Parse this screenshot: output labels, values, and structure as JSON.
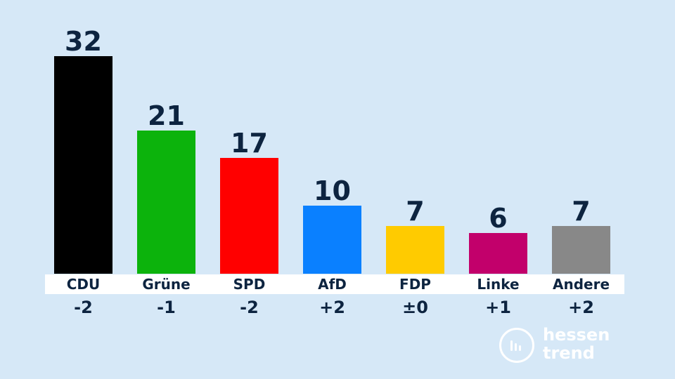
{
  "chart_data": {
    "type": "bar",
    "categories": [
      "CDU",
      "Grüne",
      "SPD",
      "AfD",
      "FDP",
      "Linke",
      "Andere"
    ],
    "values": [
      32,
      21,
      17,
      10,
      7,
      6,
      7
    ],
    "changes": [
      "-2",
      "-1",
      "-2",
      "+2",
      "±0",
      "+1",
      "+2"
    ],
    "colors": [
      "#000000",
      "#0cb30c",
      "#ff0000",
      "#0a80ff",
      "#ffcb00",
      "#c2006b",
      "#888888"
    ],
    "title": "",
    "xlabel": "",
    "ylabel": "",
    "ylim": [
      0,
      33
    ]
  },
  "logo": {
    "line1": "hessen",
    "line2": "trend"
  }
}
